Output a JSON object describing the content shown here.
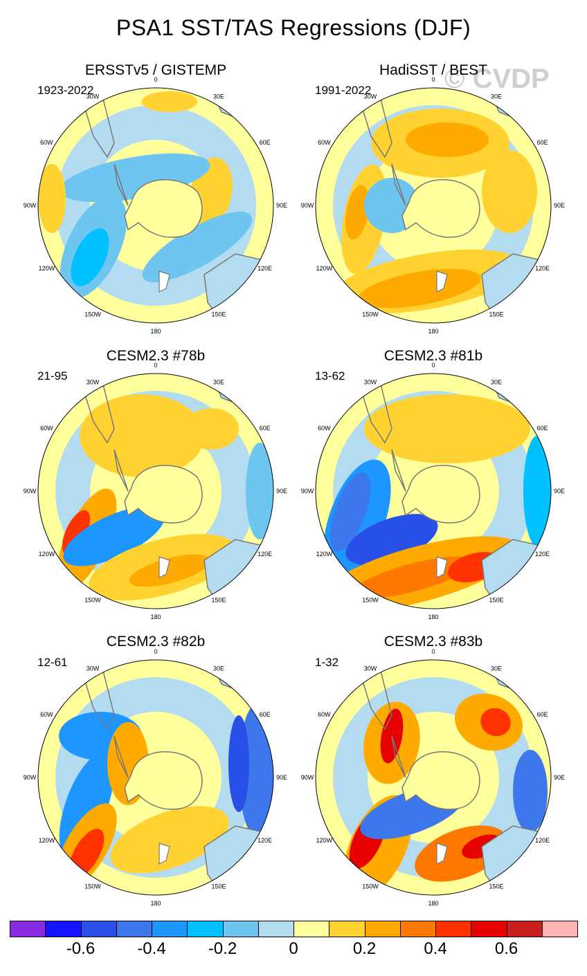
{
  "title": "PSA1 SST/TAS Regressions (DJF)",
  "watermark": "© CVDP",
  "lon_labels": [
    "0",
    "30E",
    "60E",
    "90E",
    "120E",
    "150E",
    "180",
    "150W",
    "120W",
    "90W",
    "60W",
    "30W"
  ],
  "panels": [
    {
      "title": "ERSSTv5 / GISTEMP",
      "period": "1923-2022"
    },
    {
      "title": "HadiSST / BEST",
      "period": "1991-2022"
    },
    {
      "title": "CESM2.3 #78b",
      "period": "21-95"
    },
    {
      "title": "CESM2.3 #81b",
      "period": "13-62"
    },
    {
      "title": "CESM2.3 #82b",
      "period": "12-61"
    },
    {
      "title": "CESM2.3 #83b",
      "period": "1-32"
    }
  ],
  "colorbar": {
    "colors": [
      "#8a2be2",
      "#1414ff",
      "#2850e6",
      "#3c78eb",
      "#1e96ff",
      "#00c0ff",
      "#6ec6f0",
      "#b4dcf0",
      "#ffff9c",
      "#ffd232",
      "#ffaa00",
      "#ff7800",
      "#ff3200",
      "#e60000",
      "#c81e1e",
      "#ffb4b4"
    ],
    "labels": [
      "-0.6",
      "-0.4",
      "-0.2",
      "0",
      "0.2",
      "0.4",
      "0.6"
    ]
  }
}
